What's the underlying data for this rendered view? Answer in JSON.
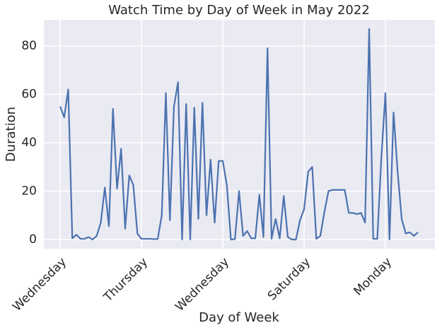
{
  "chart_data": {
    "type": "line",
    "title": "Watch Time by Day of Week in May 2022",
    "x_label": "Day of Week",
    "y_label": "Duration",
    "categories": [
      "Wednesday",
      null,
      null,
      null,
      null,
      null,
      null,
      null,
      null,
      null,
      null,
      null,
      null,
      null,
      null,
      null,
      null,
      null,
      null,
      null,
      "Thursday",
      null,
      null,
      null,
      null,
      null,
      null,
      null,
      null,
      null,
      null,
      null,
      null,
      null,
      null,
      null,
      null,
      null,
      null,
      null,
      "Wednesday",
      null,
      null,
      null,
      null,
      null,
      null,
      null,
      null,
      null,
      null,
      null,
      null,
      null,
      null,
      null,
      null,
      null,
      null,
      null,
      "Saturday",
      null,
      null,
      null,
      null,
      null,
      null,
      null,
      null,
      null,
      null,
      null,
      null,
      null,
      null,
      null,
      null,
      null,
      null,
      null,
      "Monday",
      null,
      null,
      null,
      null,
      null,
      null,
      null,
      null
    ],
    "values": [
      55,
      50.5,
      62,
      0.5,
      2,
      0.3,
      0.3,
      1,
      0,
      1.5,
      7,
      21.5,
      5.5,
      54,
      21,
      37.5,
      4.5,
      26.5,
      22.5,
      2.5,
      0.3,
      0.3,
      0.3,
      0.2,
      0.2,
      10,
      60.5,
      8,
      55,
      65,
      0,
      56,
      0,
      54.5,
      8.5,
      56.5,
      10,
      33,
      7,
      32.5,
      32.5,
      22.5,
      0,
      0.2,
      20,
      1.5,
      3.5,
      0.5,
      0.5,
      18.5,
      1,
      79,
      0.3,
      8.5,
      0.5,
      18,
      1,
      0,
      0,
      8,
      12.5,
      28,
      30,
      0.3,
      1.5,
      11.5,
      20,
      20.5,
      20.5,
      20.5,
      20.5,
      11,
      11,
      10.5,
      11,
      7,
      87,
      0.3,
      0.3,
      34,
      60.5,
      0,
      52.5,
      28,
      8.5,
      2.5,
      3,
      1.5,
      3
    ],
    "color": "#4c72b0",
    "ylim": [
      -3.8,
      90.8
    ],
    "yticks": [
      0,
      20,
      40,
      60,
      80
    ],
    "grid": true
  }
}
